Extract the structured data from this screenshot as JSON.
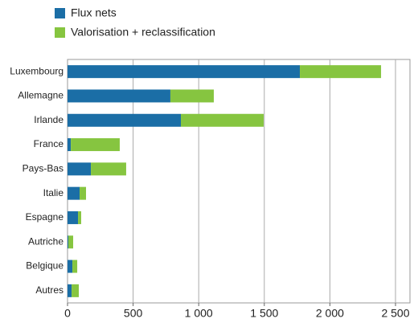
{
  "chart_data": {
    "type": "stacked-barh",
    "categories": [
      "Luxembourg",
      "Allemagne",
      "Irlande",
      "France",
      "Pays-Bas",
      "Italie",
      "Espagne",
      "Autriche",
      "Belgique",
      "Autres"
    ],
    "series": [
      {
        "name": "Flux nets",
        "color": "#1b6ea6",
        "values": [
          1771,
          784,
          864,
          25,
          178,
          92,
          80,
          6,
          37,
          31
        ]
      },
      {
        "name": "Valorisation + reclassification",
        "color": "#86c540",
        "values": [
          619,
          331,
          631,
          373,
          269,
          49,
          24,
          37,
          37,
          55
        ]
      }
    ],
    "xlim": [
      0,
      2500
    ],
    "xticks": [
      0,
      500,
      {
        "value": 1000,
        "label": "1 000"
      },
      {
        "value": 1500,
        "label": "1 500"
      },
      {
        "value": 2000,
        "label": "2 000"
      },
      {
        "value": 2500,
        "label": "2 500"
      }
    ],
    "grid": true
  }
}
